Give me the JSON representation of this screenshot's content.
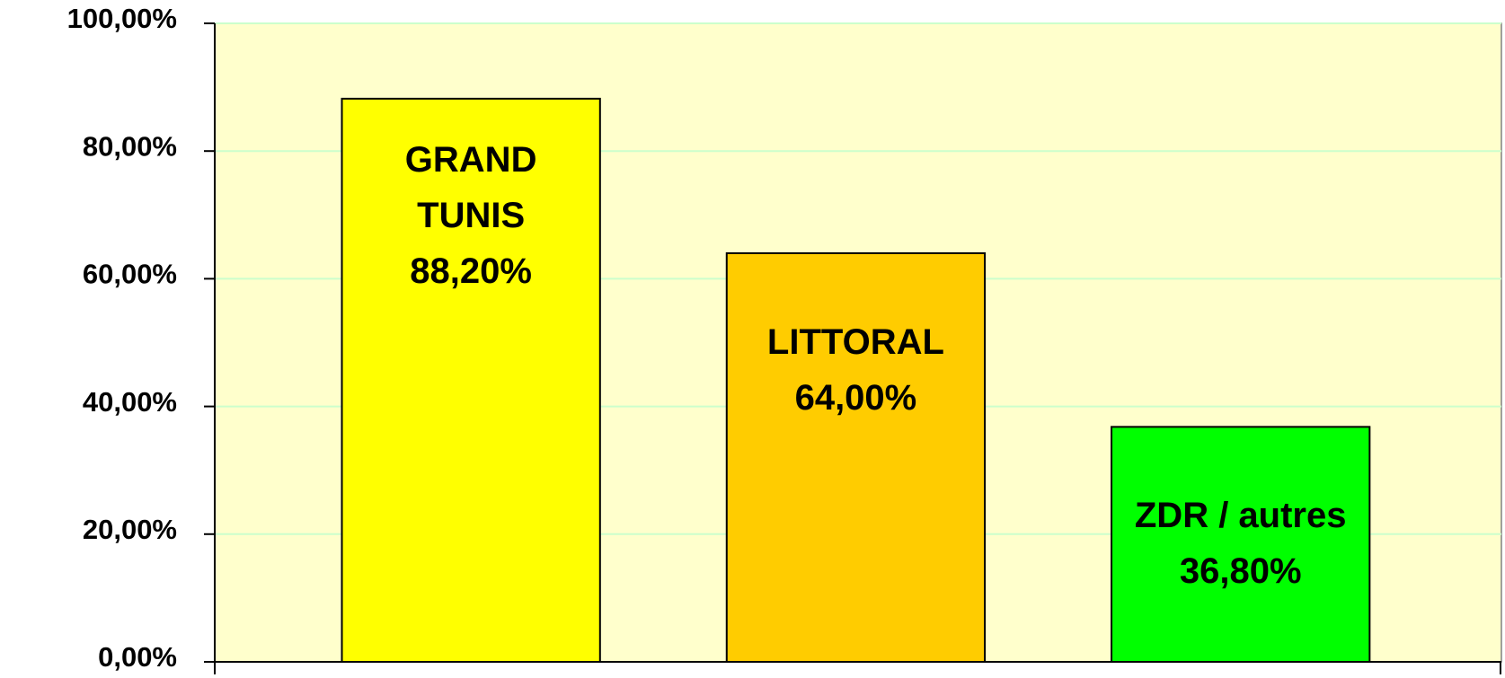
{
  "chart_data": {
    "type": "bar",
    "categories": [
      "GRAND TUNIS",
      "LITTORAL",
      "ZDR / autres"
    ],
    "values": [
      88.2,
      64,
      36.8
    ],
    "value_labels": [
      "88,20%",
      "64,00%",
      "36,80%"
    ],
    "colors": [
      "#ffff00",
      "#ffcc00",
      "#00ff00"
    ],
    "ylim": [
      0,
      100
    ],
    "yticks": [
      {
        "value": 0,
        "label": "0,00%"
      },
      {
        "value": 20,
        "label": "20,00%"
      },
      {
        "value": 40,
        "label": "40,00%"
      },
      {
        "value": 60,
        "label": "60,00%"
      },
      {
        "value": 80,
        "label": "80,00%"
      },
      {
        "value": 100,
        "label": "100,00%"
      }
    ],
    "grid": true
  }
}
